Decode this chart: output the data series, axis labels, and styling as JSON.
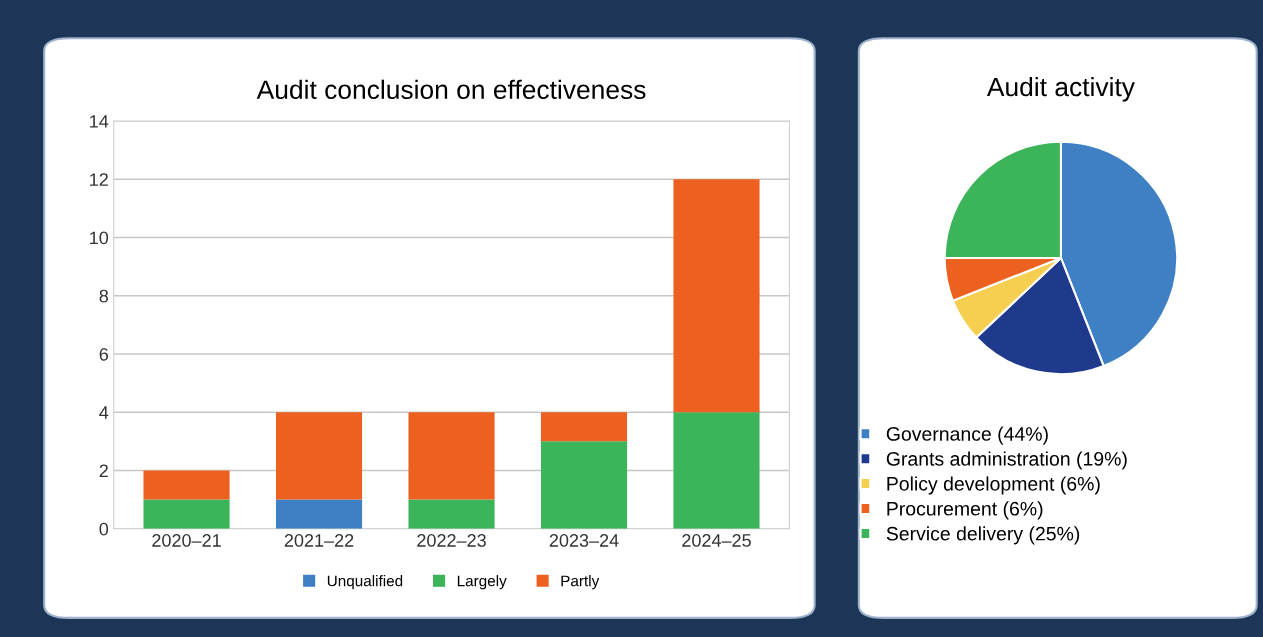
{
  "chart_data": [
    {
      "type": "bar",
      "title": "Audit conclusion on effectiveness",
      "categories": [
        "2020–21",
        "2021–22",
        "2022–23",
        "2023–24",
        "2024–25"
      ],
      "stacked": true,
      "series": [
        {
          "name": "Unqualified",
          "color": "#3f7fc4",
          "values": [
            0,
            1,
            0,
            0,
            0
          ]
        },
        {
          "name": "Largely",
          "color": "#3cb45a",
          "values": [
            1,
            0,
            1,
            3,
            4
          ]
        },
        {
          "name": "Partly",
          "color": "#ec6020",
          "values": [
            1,
            3,
            3,
            1,
            8
          ]
        }
      ],
      "ylim": [
        0,
        14
      ],
      "yticks": [
        0,
        2,
        4,
        6,
        8,
        10,
        12,
        14
      ],
      "grid": "y",
      "legend": "bottom"
    },
    {
      "type": "pie",
      "title": "Audit activity",
      "categories": [
        "Governance (44%)",
        "Grants administration (19%)",
        "Policy development (6%)",
        "Procurement (6%)",
        "Service delivery (25%)"
      ],
      "values": [
        44,
        19,
        6,
        6,
        25
      ],
      "colors": [
        "#3f7fc4",
        "#1f3a8c",
        "#f7cf50",
        "#ec6020",
        "#3cb45a"
      ],
      "legend": "bottom"
    }
  ]
}
